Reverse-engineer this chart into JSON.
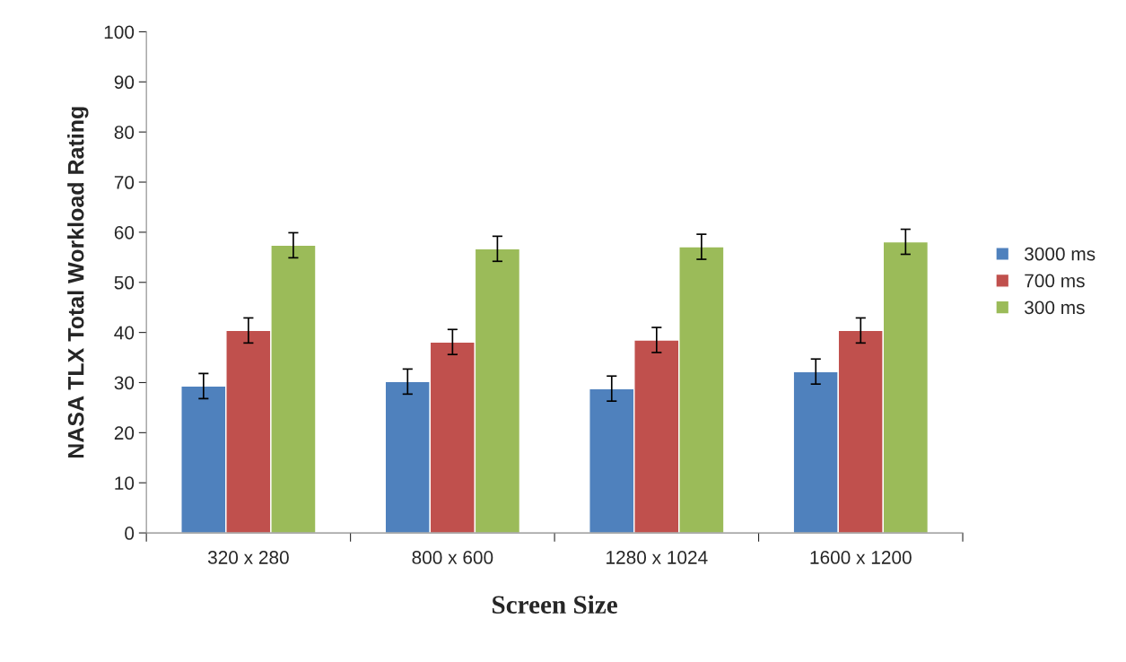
{
  "chart_data": {
    "type": "bar",
    "xlabel": "Screen Size",
    "ylabel": "NASA TLX Total Workload Rating",
    "categories": [
      "320 x 280",
      "800 x 600",
      "1280 x 1024",
      "1600 x 1200"
    ],
    "series": [
      {
        "name": "3000 ms",
        "color": "#4f81bd",
        "values": [
          29.3,
          30.2,
          28.8,
          32.2
        ],
        "errors": [
          2.5,
          2.5,
          2.5,
          2.5
        ]
      },
      {
        "name": "700 ms",
        "color": "#c0504d",
        "values": [
          40.4,
          38.1,
          38.5,
          40.4
        ],
        "errors": [
          2.5,
          2.5,
          2.5,
          2.5
        ]
      },
      {
        "name": "300 ms",
        "color": "#9bbb59",
        "values": [
          57.4,
          56.7,
          57.1,
          58.1
        ],
        "errors": [
          2.5,
          2.5,
          2.5,
          2.5
        ]
      }
    ],
    "ylim": [
      0,
      100
    ],
    "yticks": [
      0,
      10,
      20,
      30,
      40,
      50,
      60,
      70,
      80,
      90,
      100
    ],
    "grid": false,
    "legend": "right"
  }
}
